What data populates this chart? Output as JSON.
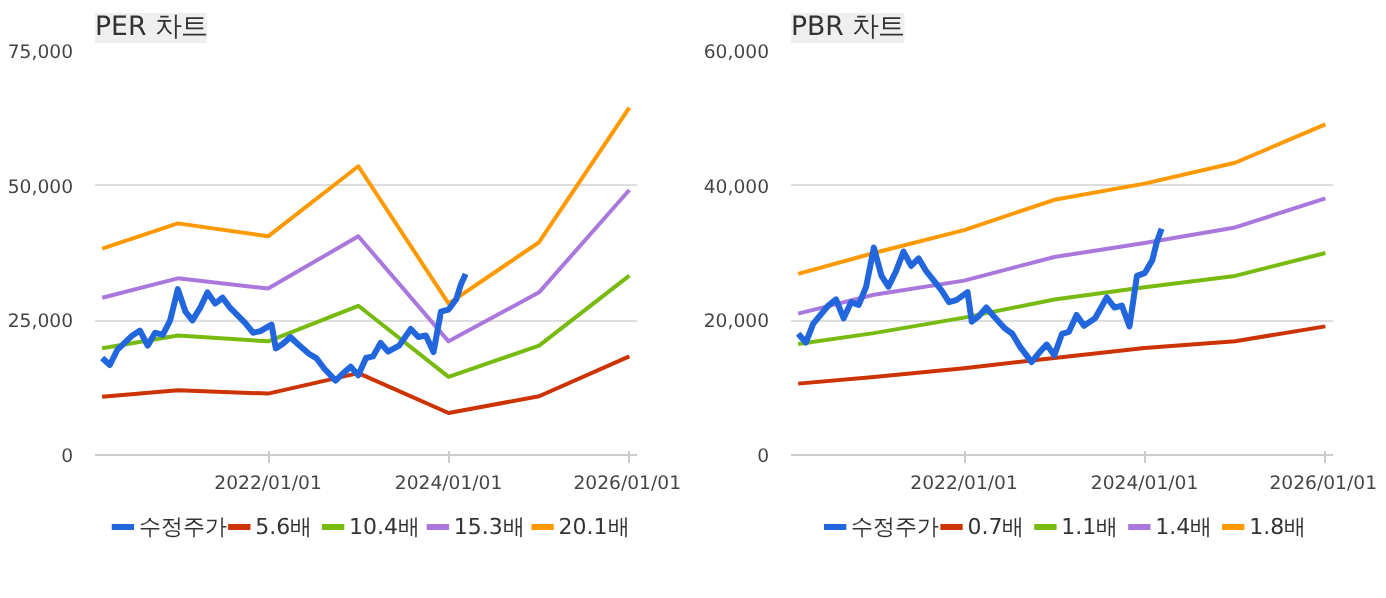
{
  "chart_data": [
    {
      "type": "line",
      "title": "PER 차트",
      "xlim": [
        "2020-02-01",
        "2026-02-01"
      ],
      "xticks": [
        {
          "value": "2022-01-01",
          "label": "2022/01/01"
        },
        {
          "value": "2024-01-01",
          "label": "2024/01/01"
        },
        {
          "value": "2026-01-01",
          "label": "2026/01/01"
        }
      ],
      "ylim": [
        0,
        75000
      ],
      "yticks": [
        {
          "value": 0,
          "label": "0"
        },
        {
          "value": 25000,
          "label": "25,000"
        },
        {
          "value": 50000,
          "label": "50,000"
        },
        {
          "value": 75000,
          "label": "75,000"
        }
      ],
      "grid": "y",
      "legend": "bottom",
      "marker": "none",
      "line_style": "solid",
      "x": [
        "2020-03-01",
        "2021-01-01",
        "2022-01-01",
        "2023-01-01",
        "2024-01-01",
        "2025-01-01",
        "2026-01-01"
      ],
      "series": [
        {
          "name": "수정주가",
          "color": "#2266dd",
          "x": [
            "2020-03-01",
            "2020-04-01",
            "2020-05-01",
            "2020-07-01",
            "2020-08-01",
            "2020-09-01",
            "2020-10-01",
            "2020-11-01",
            "2020-12-01",
            "2021-01-01",
            "2021-02-01",
            "2021-03-01",
            "2021-04-01",
            "2021-05-01",
            "2021-06-01",
            "2021-07-01",
            "2021-08-01",
            "2021-10-01",
            "2021-11-01",
            "2021-12-01",
            "2022-01-15",
            "2022-02-01",
            "2022-03-01",
            "2022-04-01",
            "2022-05-01",
            "2022-06-15",
            "2022-07-15",
            "2022-08-15",
            "2022-10-01",
            "2022-11-01",
            "2022-12-01",
            "2023-01-01",
            "2023-02-01",
            "2023-03-01",
            "2023-04-01",
            "2023-05-01",
            "2023-06-15",
            "2023-08-01",
            "2023-09-01",
            "2023-10-01",
            "2023-11-01",
            "2023-12-01",
            "2024-01-01",
            "2024-02-01",
            "2024-02-20",
            "2024-03-10"
          ],
          "values": [
            18000,
            16700,
            19500,
            22200,
            23100,
            20300,
            22700,
            22300,
            25000,
            30800,
            26600,
            25000,
            27300,
            30200,
            28100,
            29200,
            27300,
            24500,
            22700,
            23000,
            24200,
            19800,
            20600,
            21900,
            20600,
            18800,
            18000,
            16100,
            13800,
            15200,
            16400,
            14800,
            18000,
            18300,
            20800,
            19200,
            20300,
            23400,
            21900,
            22200,
            19100,
            26600,
            27000,
            28900,
            31700,
            33600
          ]
        },
        {
          "name": "5.6배",
          "color": "#cc3300",
          "values": [
            10800,
            12000,
            11400,
            15200,
            7800,
            10900,
            18300
          ]
        },
        {
          "name": "10.4배",
          "color": "#77bb11",
          "values": [
            19800,
            22200,
            21100,
            27700,
            14500,
            20300,
            33300
          ]
        },
        {
          "name": "15.3배",
          "color": "#aa77dd",
          "values": [
            29200,
            32800,
            30900,
            40600,
            21100,
            30200,
            49200
          ]
        },
        {
          "name": "20.1배",
          "color": "#ff9900",
          "values": [
            38300,
            43000,
            40600,
            53600,
            28100,
            39500,
            64500
          ]
        }
      ]
    },
    {
      "type": "line",
      "title": "PBR 차트",
      "xlim": [
        "2020-02-01",
        "2026-02-01"
      ],
      "xticks": [
        {
          "value": "2022-01-01",
          "label": "2022/01/01"
        },
        {
          "value": "2024-01-01",
          "label": "2024/01/01"
        },
        {
          "value": "2026-01-01",
          "label": "2026/01/01"
        }
      ],
      "ylim": [
        0,
        60000
      ],
      "yticks": [
        {
          "value": 0,
          "label": "0"
        },
        {
          "value": 20000,
          "label": "20,000"
        },
        {
          "value": 40000,
          "label": "40,000"
        },
        {
          "value": 60000,
          "label": "60,000"
        }
      ],
      "grid": "y",
      "legend": "bottom",
      "marker": "none",
      "line_style": "solid",
      "x": [
        "2020-03-01",
        "2021-01-01",
        "2022-01-01",
        "2023-01-01",
        "2024-01-01",
        "2025-01-01",
        "2026-01-01"
      ],
      "series": [
        {
          "name": "수정주가",
          "color": "#2266dd",
          "x": [
            "2020-03-01",
            "2020-04-01",
            "2020-05-01",
            "2020-07-01",
            "2020-08-01",
            "2020-09-01",
            "2020-10-01",
            "2020-11-01",
            "2020-12-01",
            "2021-01-01",
            "2021-02-01",
            "2021-03-01",
            "2021-04-01",
            "2021-05-01",
            "2021-06-01",
            "2021-07-01",
            "2021-08-01",
            "2021-10-01",
            "2021-11-01",
            "2021-12-01",
            "2022-01-15",
            "2022-02-01",
            "2022-03-01",
            "2022-04-01",
            "2022-05-01",
            "2022-06-15",
            "2022-07-15",
            "2022-08-15",
            "2022-10-01",
            "2022-11-01",
            "2022-12-01",
            "2023-01-01",
            "2023-02-01",
            "2023-03-01",
            "2023-04-01",
            "2023-05-01",
            "2023-06-15",
            "2023-08-01",
            "2023-09-01",
            "2023-10-01",
            "2023-11-01",
            "2023-12-01",
            "2024-01-01",
            "2024-02-01",
            "2024-02-20",
            "2024-03-10"
          ],
          "values": [
            18000,
            16700,
            19500,
            22200,
            23100,
            20300,
            22700,
            22300,
            25000,
            30800,
            26600,
            25000,
            27300,
            30200,
            28100,
            29200,
            27300,
            24500,
            22700,
            23000,
            24200,
            19800,
            20600,
            21900,
            20600,
            18800,
            18000,
            16100,
            13800,
            15200,
            16400,
            14800,
            18000,
            18300,
            20800,
            19200,
            20300,
            23400,
            21900,
            22200,
            19100,
            26600,
            27000,
            28900,
            31700,
            33600
          ]
        },
        {
          "name": "0.7배",
          "color": "#cc3300",
          "values": [
            10600,
            11600,
            12900,
            14400,
            15900,
            16900,
            19100
          ]
        },
        {
          "name": "1.1배",
          "color": "#77bb11",
          "values": [
            16500,
            18100,
            20400,
            23100,
            24900,
            26600,
            30000
          ]
        },
        {
          "name": "1.4배",
          "color": "#aa77dd",
          "values": [
            21000,
            23800,
            25900,
            29400,
            31500,
            33800,
            38100
          ]
        },
        {
          "name": "1.8배",
          "color": "#ff9900",
          "values": [
            26900,
            30000,
            33400,
            37900,
            40300,
            43400,
            49100
          ]
        }
      ]
    }
  ]
}
